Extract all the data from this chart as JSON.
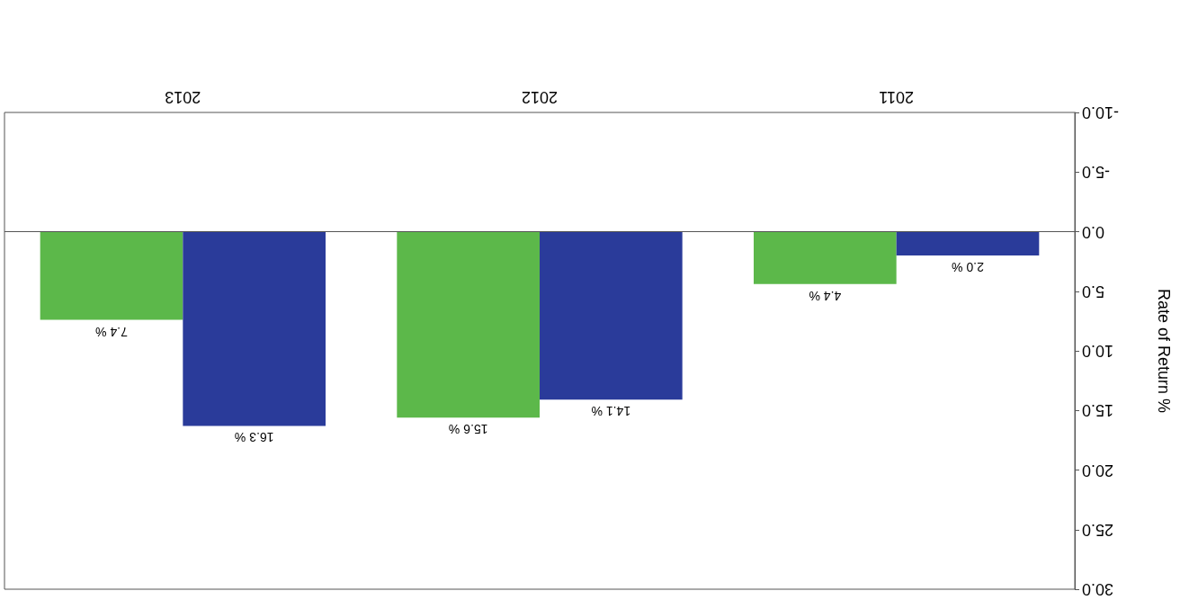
{
  "chart_data": {
    "type": "bar",
    "ylabel": "Rate of Return %",
    "categories": [
      "2013",
      "2012",
      "2011"
    ],
    "series": [
      {
        "color": "#5cb84a",
        "values": [
          7.4,
          15.6,
          4.4
        ],
        "value_labels": [
          "7.4 %",
          "15.6 %",
          "4.4 %"
        ]
      },
      {
        "color": "#2a3b9a",
        "values": [
          16.3,
          14.1,
          2.0
        ],
        "value_labels": [
          "16.3 %",
          "14.1 %",
          "2.0 %"
        ]
      }
    ],
    "ylim": [
      30,
      -10
    ],
    "yticks": [
      {
        "value": -10,
        "label": "-10.0"
      },
      {
        "value": -5,
        "label": "-5.0"
      },
      {
        "value": 0,
        "label": "0.0"
      },
      {
        "value": 5,
        "label": "5.0"
      },
      {
        "value": 10,
        "label": "10.0"
      },
      {
        "value": 15,
        "label": "15.0"
      },
      {
        "value": 20,
        "label": "20.0"
      },
      {
        "value": 25,
        "label": "25.0"
      },
      {
        "value": 30,
        "label": "30.0"
      }
    ]
  }
}
